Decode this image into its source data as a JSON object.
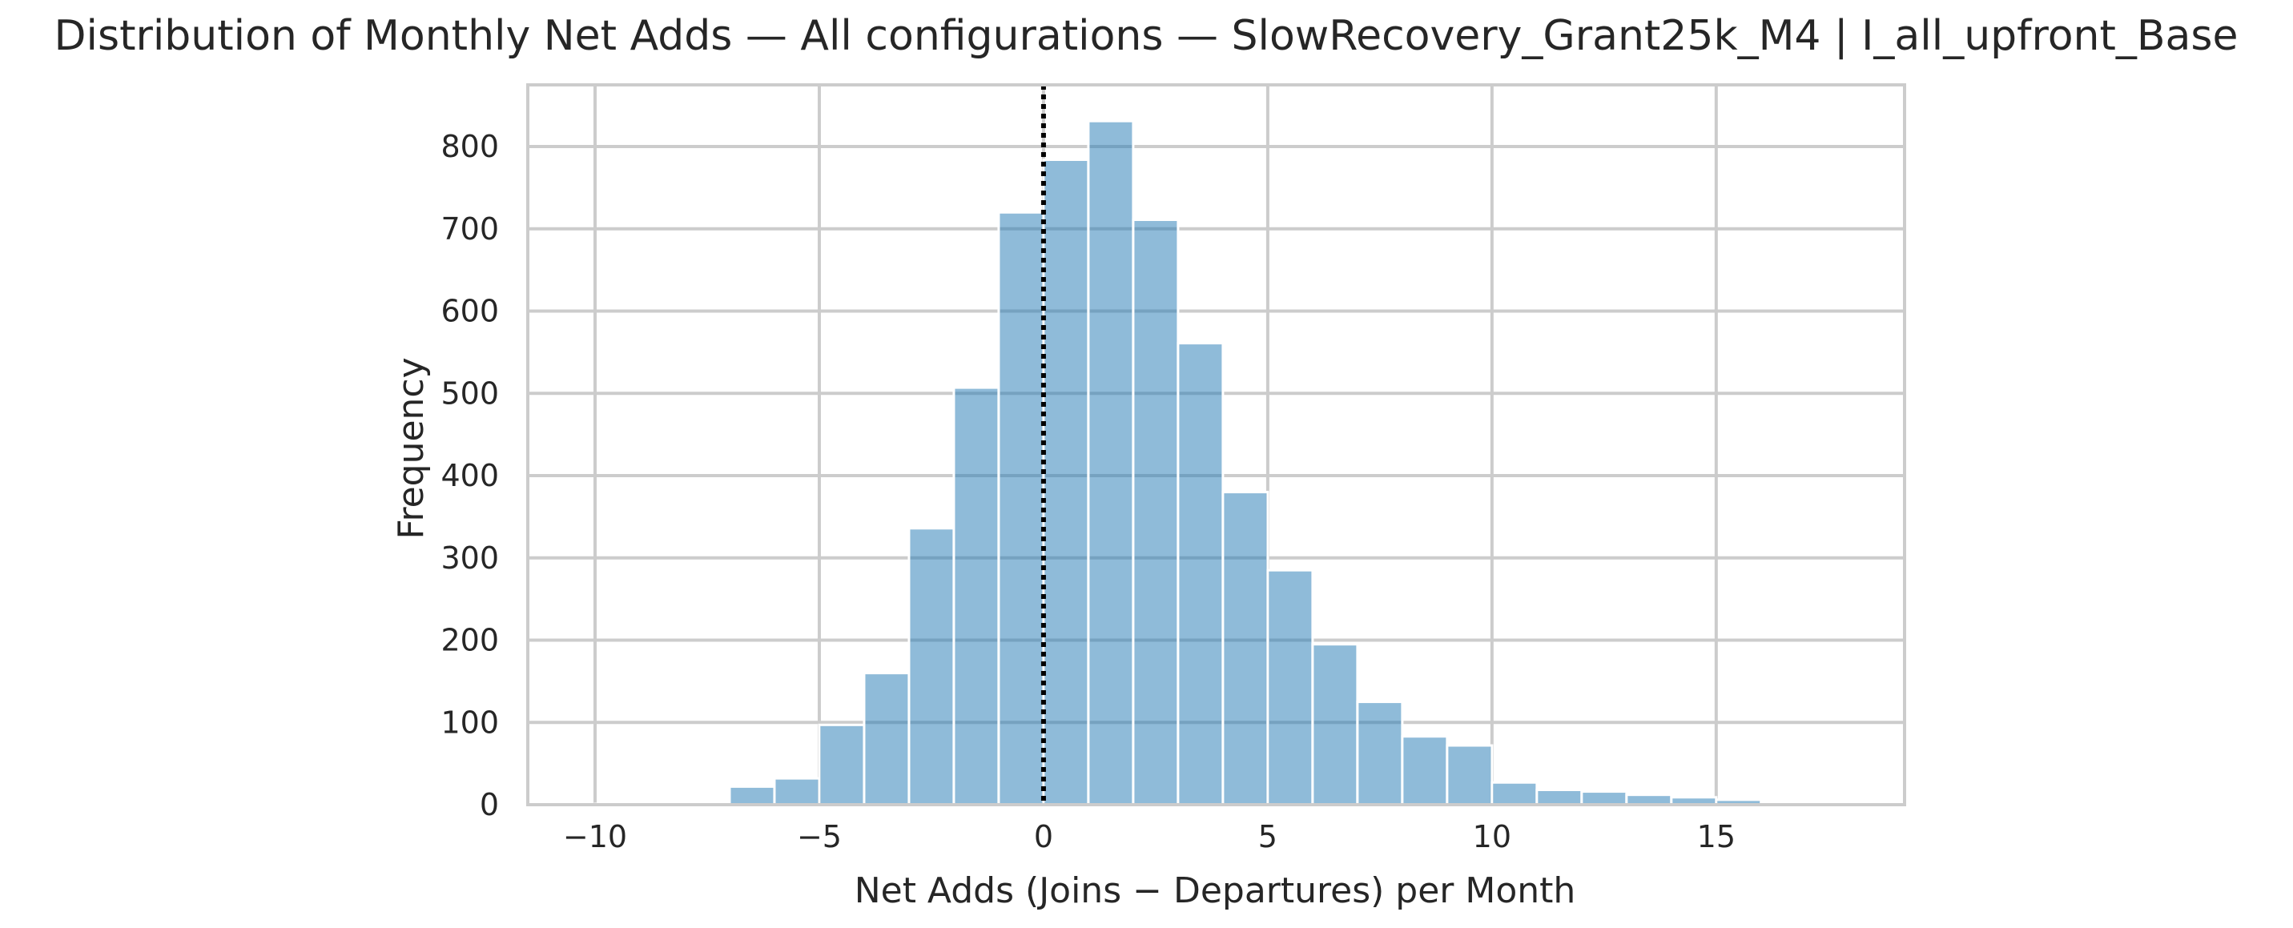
{
  "chart_data": {
    "type": "bar",
    "subtype": "histogram",
    "title": "Distribution of Monthly Net Adds — All configurations — SlowRecovery_Grant25k_M4 | I_all_upfront_Base",
    "xlabel": "Net Adds (Joins − Departures) per Month",
    "ylabel": "Frequency",
    "xlim": [
      -11.5,
      19.2
    ],
    "ylim": [
      0,
      875
    ],
    "x_ticks": [
      -10,
      -5,
      0,
      5,
      10,
      15
    ],
    "x_tick_labels": [
      "−10",
      "−5",
      "0",
      "5",
      "10",
      "15"
    ],
    "y_ticks": [
      0,
      100,
      200,
      300,
      400,
      500,
      600,
      700,
      800
    ],
    "y_tick_labels": [
      "0",
      "100",
      "200",
      "300",
      "400",
      "500",
      "600",
      "700",
      "800"
    ],
    "grid": true,
    "bin_width": 1,
    "bins": [
      {
        "x0": -10,
        "x1": -9,
        "value": 1
      },
      {
        "x0": -9,
        "x1": -8,
        "value": 3
      },
      {
        "x0": -8,
        "x1": -7,
        "value": 3
      },
      {
        "x0": -7,
        "x1": -6,
        "value": 22
      },
      {
        "x0": -6,
        "x1": -5,
        "value": 32
      },
      {
        "x0": -5,
        "x1": -4,
        "value": 97
      },
      {
        "x0": -4,
        "x1": -3,
        "value": 160
      },
      {
        "x0": -3,
        "x1": -2,
        "value": 336
      },
      {
        "x0": -2,
        "x1": -1,
        "value": 507
      },
      {
        "x0": -1,
        "x1": 0,
        "value": 720
      },
      {
        "x0": 0,
        "x1": 1,
        "value": 784
      },
      {
        "x0": 1,
        "x1": 2,
        "value": 831
      },
      {
        "x0": 2,
        "x1": 3,
        "value": 711
      },
      {
        "x0": 3,
        "x1": 4,
        "value": 561
      },
      {
        "x0": 4,
        "x1": 5,
        "value": 380
      },
      {
        "x0": 5,
        "x1": 6,
        "value": 285
      },
      {
        "x0": 6,
        "x1": 7,
        "value": 195
      },
      {
        "x0": 7,
        "x1": 8,
        "value": 125
      },
      {
        "x0": 8,
        "x1": 9,
        "value": 83
      },
      {
        "x0": 9,
        "x1": 10,
        "value": 72
      },
      {
        "x0": 10,
        "x1": 11,
        "value": 27
      },
      {
        "x0": 11,
        "x1": 12,
        "value": 18
      },
      {
        "x0": 12,
        "x1": 13,
        "value": 16
      },
      {
        "x0": 13,
        "x1": 14,
        "value": 12
      },
      {
        "x0": 14,
        "x1": 15,
        "value": 9
      },
      {
        "x0": 15,
        "x1": 16,
        "value": 6
      },
      {
        "x0": 16,
        "x1": 17,
        "value": 3
      },
      {
        "x0": 17,
        "x1": 18,
        "value": 2
      }
    ],
    "reference_line": {
      "x": 0,
      "style": "dotted",
      "color": "#000000"
    },
    "colors": {
      "bar_fill": "#1f77b4",
      "bar_opacity": 0.5,
      "bar_edge": "#ffffff",
      "grid": "#cccccc",
      "spine": "#cccccc"
    }
  }
}
